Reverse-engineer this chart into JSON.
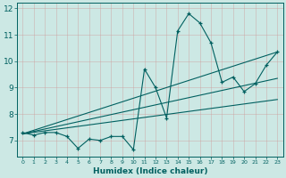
{
  "xlabel": "Humidex (Indice chaleur)",
  "ylabel": "",
  "background_color": "#cce8e4",
  "line_color": "#006060",
  "grid_color": "#aad8d4",
  "xlim": [
    -0.5,
    23.5
  ],
  "ylim": [
    6.4,
    12.2
  ],
  "xtick_labels": [
    "0",
    "1",
    "2",
    "3",
    "4",
    "5",
    "6",
    "7",
    "8",
    "9",
    "10",
    "11",
    "12",
    "13",
    "14",
    "15",
    "16",
    "17",
    "18",
    "19",
    "20",
    "21",
    "22",
    "23"
  ],
  "ytick_labels": [
    "7",
    "8",
    "9",
    "10",
    "11",
    "12"
  ],
  "yticks": [
    7,
    8,
    9,
    10,
    11,
    12
  ],
  "main_x": [
    0,
    1,
    2,
    3,
    4,
    5,
    6,
    7,
    8,
    9,
    10,
    11,
    12,
    13,
    14,
    15,
    16,
    17,
    18,
    19,
    20,
    21,
    22,
    23
  ],
  "main_y": [
    7.3,
    7.2,
    7.3,
    7.3,
    7.15,
    6.7,
    7.05,
    7.0,
    7.15,
    7.15,
    6.65,
    9.7,
    9.0,
    7.85,
    11.15,
    11.8,
    11.45,
    10.7,
    9.2,
    9.4,
    8.85,
    9.15,
    9.85,
    10.35
  ],
  "trend_lines": [
    {
      "x": [
        0,
        23
      ],
      "y": [
        7.25,
        8.55
      ]
    },
    {
      "x": [
        0,
        23
      ],
      "y": [
        7.25,
        9.35
      ]
    },
    {
      "x": [
        0,
        23
      ],
      "y": [
        7.25,
        10.35
      ]
    }
  ]
}
